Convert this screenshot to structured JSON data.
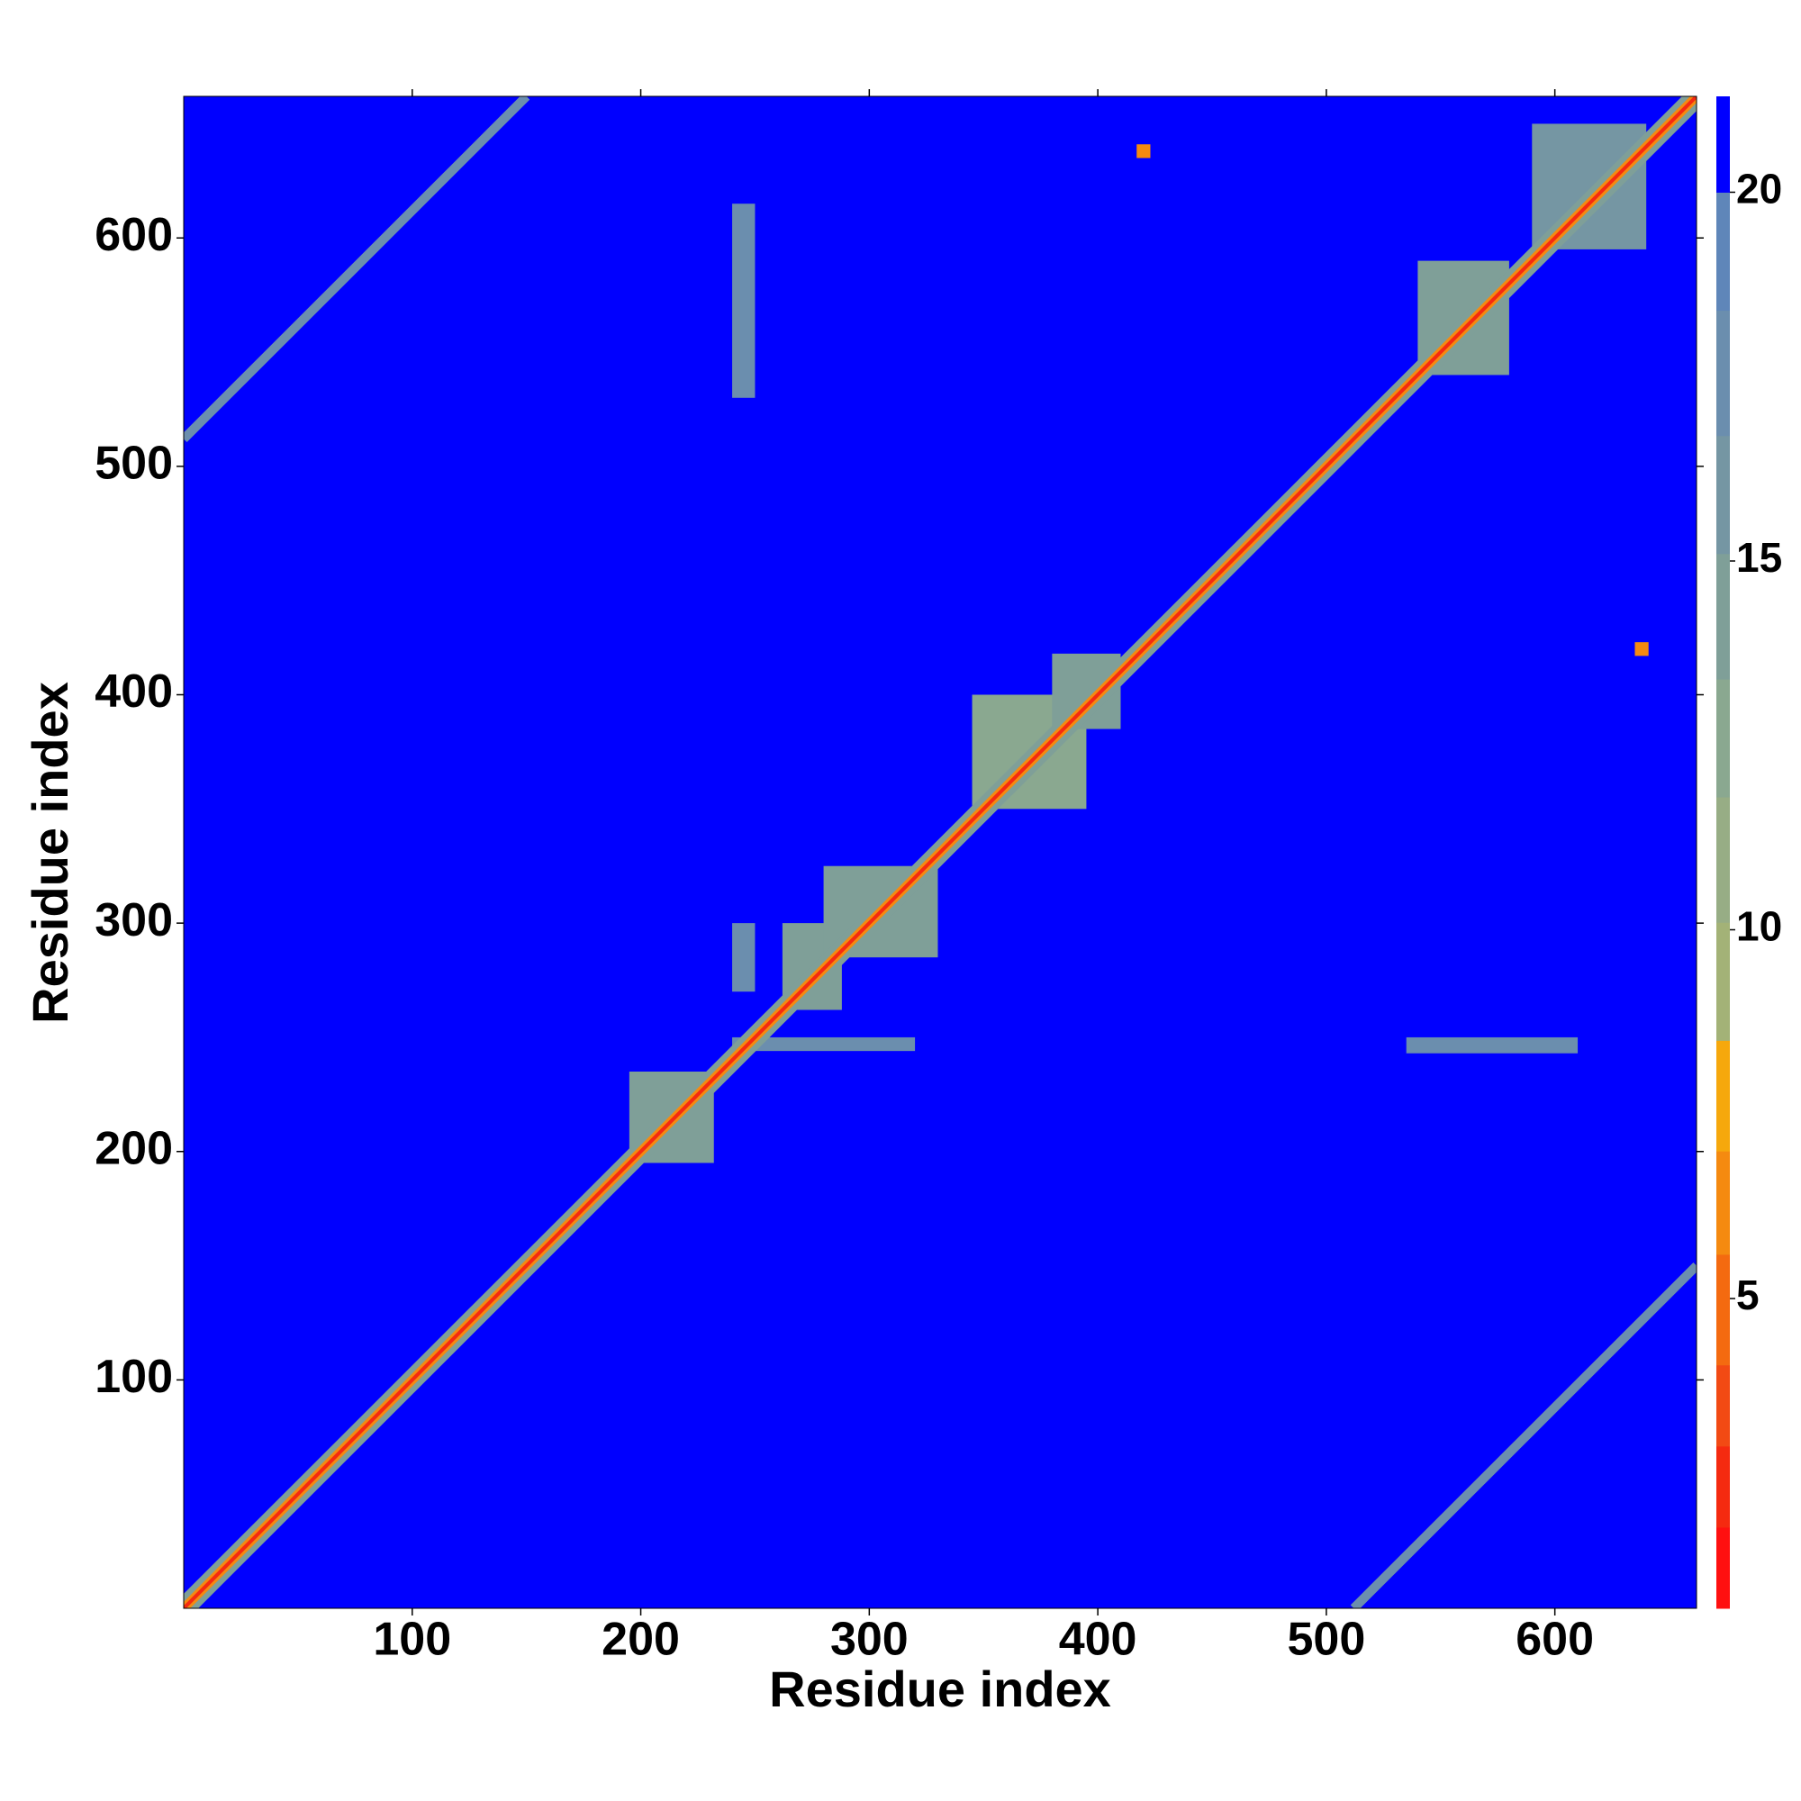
{
  "chart_data": {
    "type": "contact_map",
    "xlabel": "Residue index",
    "ylabel": "Residue index",
    "xlim": [
      0,
      662
    ],
    "ylim": [
      0,
      662
    ],
    "xticks": [
      100,
      200,
      300,
      400,
      500,
      600
    ],
    "yticks": [
      100,
      200,
      300,
      400,
      500,
      600
    ],
    "background_value": 21,
    "colorbar": {
      "clim": [
        0.8,
        21.3
      ],
      "ticks": [
        5,
        10,
        15,
        20
      ],
      "levels": [
        0.8,
        1.9,
        3.0,
        4.1,
        5.6,
        7.0,
        8.5,
        10.1,
        11.8,
        13.4,
        15.1,
        16.7,
        18.4,
        20.0,
        21.3
      ],
      "colors": [
        "#ff1010",
        "#f52a10",
        "#f24a14",
        "#f46a10",
        "#f58a10",
        "#f6a80c",
        "#a3b277",
        "#97ad85",
        "#8aa890",
        "#7f9f98",
        "#7596a3",
        "#6b8eae",
        "#5f86b9",
        "#0000ff"
      ]
    },
    "patches": [
      {
        "x": [
          195,
          232
        ],
        "y": [
          195,
          235
        ],
        "value": 14
      },
      {
        "x": [
          262,
          288
        ],
        "y": [
          262,
          300
        ],
        "value": 14
      },
      {
        "x": [
          280,
          330
        ],
        "y": [
          285,
          325
        ],
        "value": 15
      },
      {
        "x": [
          345,
          395
        ],
        "y": [
          350,
          400
        ],
        "value": 13
      },
      {
        "x": [
          380,
          410
        ],
        "y": [
          385,
          418
        ],
        "value": 14
      },
      {
        "x": [
          540,
          580
        ],
        "y": [
          540,
          590
        ],
        "value": 15
      },
      {
        "x": [
          590,
          640
        ],
        "y": [
          595,
          650
        ],
        "value": 16
      },
      {
        "x": [
          240,
          320
        ],
        "y": [
          244,
          250
        ],
        "value": 17
      },
      {
        "x": [
          535,
          610
        ],
        "y": [
          243,
          250
        ],
        "value": 17
      },
      {
        "x": [
          240,
          250
        ],
        "y": [
          530,
          615
        ],
        "value": 17
      },
      {
        "x": [
          240,
          250
        ],
        "y": [
          270,
          300
        ],
        "value": 17
      },
      {
        "x": [
          417,
          423
        ],
        "y": [
          635,
          641
        ],
        "value": 6
      },
      {
        "x": [
          635,
          641
        ],
        "y": [
          417,
          423
        ],
        "value": 6
      }
    ],
    "bands": [
      {
        "x": [
          0,
          662
        ],
        "y": [
          0,
          662
        ],
        "width": 9,
        "value": 15
      },
      {
        "x": [
          0,
          662
        ],
        "y": [
          0,
          662
        ],
        "width": 4,
        "value": 6
      },
      {
        "x": [
          0,
          662
        ],
        "y": [
          0,
          662
        ],
        "width": 1.6,
        "value": 2
      },
      {
        "x": [
          0,
          150
        ],
        "y": [
          512,
          662
        ],
        "width": 4,
        "value": 17
      },
      {
        "x": [
          512,
          662
        ],
        "y": [
          0,
          150
        ],
        "width": 4,
        "value": 17
      }
    ]
  }
}
